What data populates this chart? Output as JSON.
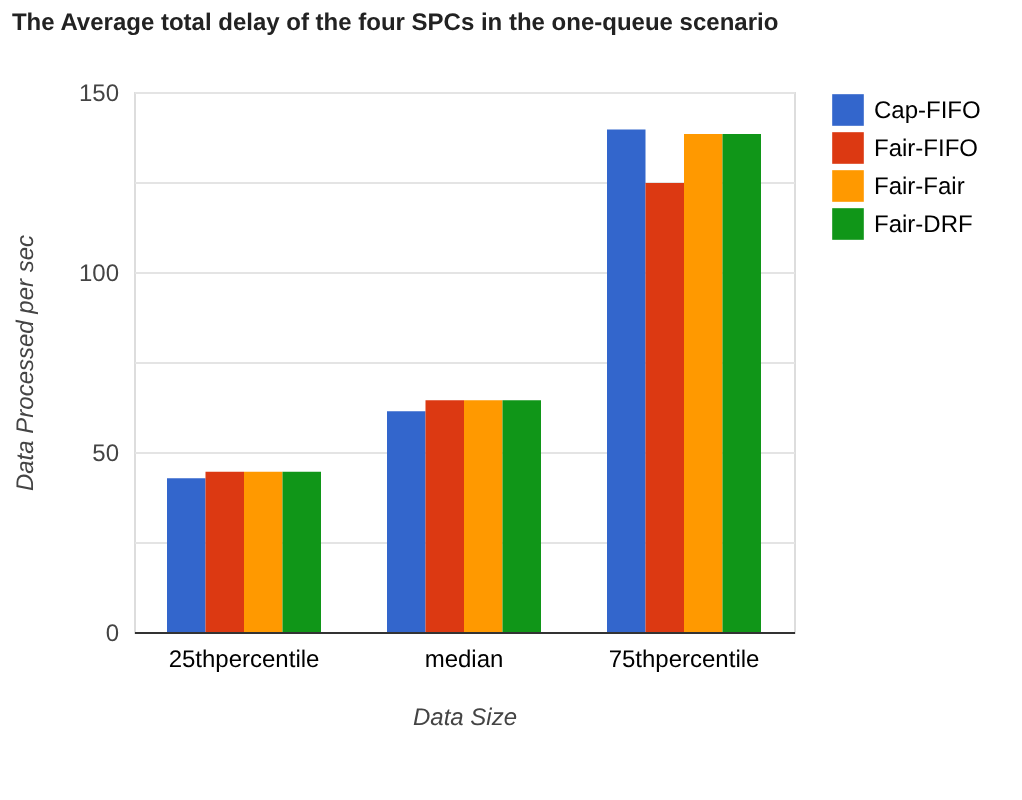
{
  "chart_data": {
    "type": "bar",
    "title": "The Average total delay of the four SPCs in the one-queue scenario",
    "xlabel": "Data Size",
    "ylabel": "Data Processed per sec",
    "categories": [
      "25thpercentile",
      "median",
      "75thpercentile"
    ],
    "series": [
      {
        "name": "Cap-FIFO",
        "color": "#3366cc",
        "values": [
          42.7,
          61.3,
          139.6
        ]
      },
      {
        "name": "Fair-FIFO",
        "color": "#dc3912",
        "values": [
          44.5,
          64.4,
          124.7
        ]
      },
      {
        "name": "Fair-Fair",
        "color": "#ff9900",
        "values": [
          44.5,
          64.4,
          138.3
        ]
      },
      {
        "name": "Fair-DRF",
        "color": "#109618",
        "values": [
          44.5,
          64.4,
          138.3
        ]
      }
    ],
    "ylim": [
      0,
      150
    ],
    "yticks": [
      0,
      {
        "value": 25,
        "label": null
      },
      50,
      {
        "value": 75,
        "label": null
      },
      100,
      {
        "value": 125,
        "label": null
      },
      150
    ],
    "grid": "y",
    "legend": "right"
  }
}
